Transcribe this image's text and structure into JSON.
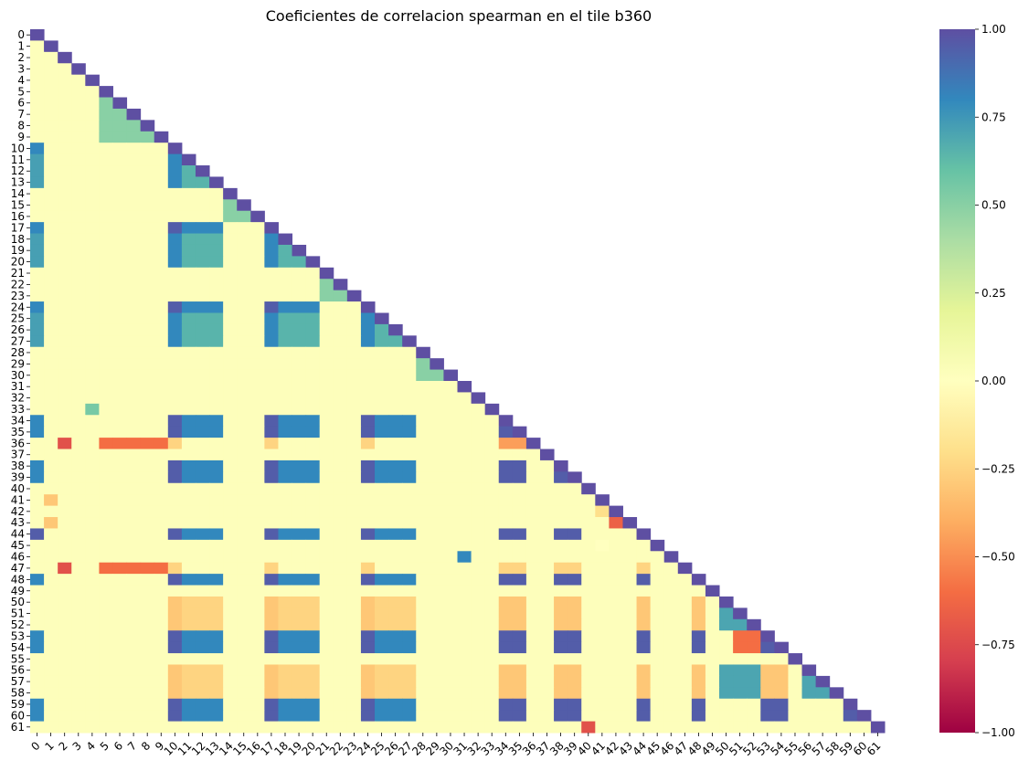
{
  "chart_data": {
    "type": "heatmap",
    "title": "Coeficientes de correlacion spearman en el tile b360",
    "xlabel": "",
    "ylabel": "",
    "n": 62,
    "row_labels": [
      "0",
      "1",
      "2",
      "3",
      "4",
      "5",
      "6",
      "7",
      "8",
      "9",
      "10",
      "11",
      "12",
      "13",
      "14",
      "15",
      "16",
      "17",
      "18",
      "19",
      "20",
      "21",
      "22",
      "23",
      "24",
      "25",
      "26",
      "27",
      "28",
      "29",
      "30",
      "31",
      "32",
      "33",
      "34",
      "35",
      "36",
      "37",
      "38",
      "39",
      "40",
      "41",
      "42",
      "43",
      "44",
      "45",
      "46",
      "47",
      "48",
      "49",
      "50",
      "51",
      "52",
      "53",
      "54",
      "55",
      "56",
      "57",
      "58",
      "59",
      "60",
      "61"
    ],
    "col_labels": [
      "0",
      "1",
      "2",
      "3",
      "4",
      "5",
      "6",
      "7",
      "8",
      "9",
      "10",
      "11",
      "12",
      "13",
      "14",
      "15",
      "16",
      "17",
      "18",
      "19",
      "20",
      "21",
      "22",
      "23",
      "24",
      "25",
      "26",
      "27",
      "28",
      "29",
      "30",
      "31",
      "32",
      "33",
      "34",
      "35",
      "36",
      "37",
      "38",
      "39",
      "40",
      "41",
      "42",
      "43",
      "44",
      "45",
      "46",
      "47",
      "48",
      "49",
      "50",
      "51",
      "52",
      "53",
      "54",
      "55",
      "56",
      "57",
      "58",
      "59",
      "60",
      "61"
    ],
    "masked": "upper triangle (above diagonal)",
    "colormap": "Spectral",
    "colorbar": {
      "min": -1.0,
      "max": 1.0,
      "ticks": [
        1.0,
        0.75,
        0.5,
        0.25,
        0.0,
        -0.25,
        -0.5,
        -0.75,
        -1.0
      ],
      "tick_labels": [
        "1.00",
        "0.75",
        "0.50",
        "0.25",
        "0.00",
        "−0.25",
        "−0.50",
        "−0.75",
        "−1.00"
      ]
    },
    "groups": {
      "A": [
        10,
        17,
        24,
        34,
        35,
        38,
        39,
        44,
        48,
        53,
        54,
        59,
        60
      ],
      "B": [
        11,
        12,
        13,
        18,
        19,
        20,
        25,
        26,
        27
      ],
      "S1": [
        5,
        6,
        7,
        8,
        9
      ],
      "S2": [
        14,
        15,
        16
      ],
      "S3": [
        21,
        22,
        23
      ],
      "S4": [
        28,
        29,
        30
      ],
      "N": [
        50,
        51,
        52,
        56,
        57,
        58
      ],
      "M": [
        36,
        47
      ]
    },
    "group_values": {
      "diag": 1.0,
      "A_A": 0.95,
      "A_B": 0.8,
      "B_B": 0.65,
      "A_col0": 0.8,
      "B_col0": 0.72,
      "S_within": 0.5,
      "S2_to_S1_2": 0.02,
      "A_N": -0.3,
      "B_N": -0.25,
      "N_N": 0.7,
      "M_S1": -0.6,
      "M_A": -0.25,
      "col2_M": -0.72,
      "other_default": 0.02
    },
    "overrides": [
      {
        "row": 61,
        "col": 40,
        "value": -0.72
      },
      {
        "row": 46,
        "col": 31,
        "value": 0.8
      },
      {
        "row": 43,
        "col": 42,
        "value": -0.65
      },
      {
        "row": 36,
        "col": 34,
        "value": -0.45
      },
      {
        "row": 36,
        "col": 35,
        "value": -0.45
      },
      {
        "row": 44,
        "col": 35,
        "value": 0.95
      },
      {
        "row": 53,
        "col": 52,
        "value": -0.6
      },
      {
        "row": 54,
        "col": 52,
        "value": -0.6
      },
      {
        "row": 53,
        "col": 51,
        "value": -0.6
      },
      {
        "row": 54,
        "col": 51,
        "value": -0.6
      },
      {
        "row": 59,
        "col": 53,
        "value": 0.95
      },
      {
        "row": 59,
        "col": 54,
        "value": 0.95
      },
      {
        "row": 60,
        "col": 53,
        "value": 0.95
      },
      {
        "row": 60,
        "col": 54,
        "value": 0.95
      },
      {
        "row": 41,
        "col": 1,
        "value": -0.3
      },
      {
        "row": 43,
        "col": 1,
        "value": -0.3
      },
      {
        "row": 44,
        "col": 0,
        "value": 0.95
      },
      {
        "row": 33,
        "col": 4,
        "value": 0.55
      },
      {
        "row": 42,
        "col": 41,
        "value": -0.2
      },
      {
        "row": 45,
        "col": 41,
        "value": 0.0
      }
    ]
  }
}
